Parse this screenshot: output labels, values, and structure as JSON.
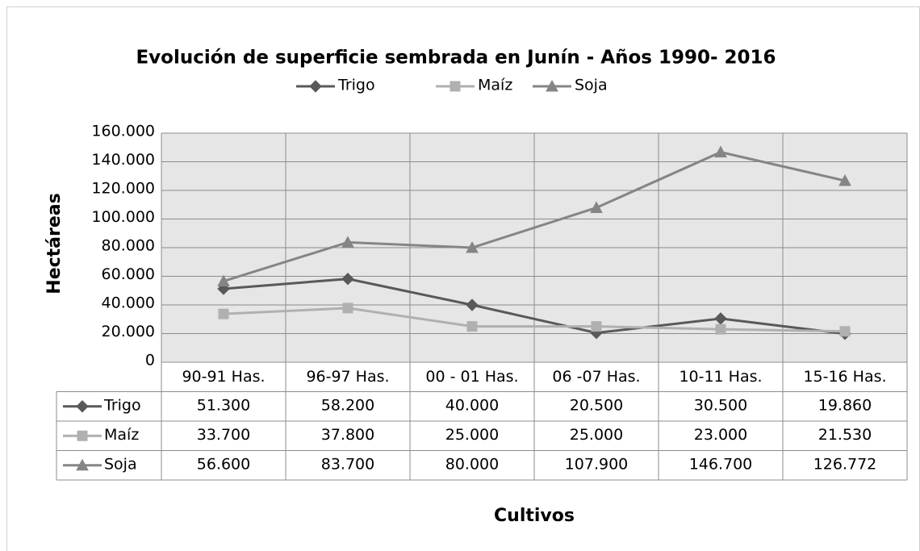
{
  "chart_data": {
    "type": "line",
    "title": "Evolución de superficie sembrada en Junín - Años 1990- 2016",
    "y_label": "Hectáreas",
    "x_label": "Cultivos",
    "categories": [
      "90-91 Has.",
      "96-97 Has.",
      "00 - 01 Has.",
      "06 -07 Has.",
      "10-11 Has.",
      "15-16 Has."
    ],
    "series": [
      {
        "name": "Trigo",
        "color": "#595959",
        "marker": "diamond",
        "values": [
          51300,
          58200,
          40000,
          20500,
          30500,
          19860
        ],
        "value_labels": [
          "51.300",
          "58.200",
          "40.000",
          "20.500",
          "30.500",
          "19.860"
        ]
      },
      {
        "name": "Maíz",
        "color": "#b0b0b0",
        "marker": "square",
        "values": [
          33700,
          37800,
          25000,
          25000,
          23000,
          21530
        ],
        "value_labels": [
          "33.700",
          "37.800",
          "25.000",
          "25.000",
          "23.000",
          "21.530"
        ]
      },
      {
        "name": "Soja",
        "color": "#858585",
        "marker": "triangle",
        "values": [
          56600,
          83700,
          80000,
          107900,
          146700,
          126772
        ],
        "value_labels": [
          "56.600",
          "83.700",
          "80.000",
          "107.900",
          "146.700",
          "126.772"
        ]
      }
    ],
    "ylim": [
      0,
      160000
    ],
    "yticks": [
      0,
      {
        "value": 20000,
        "label": "20.000"
      },
      {
        "value": 40000,
        "label": "40.000"
      },
      {
        "value": 60000,
        "label": "60.000"
      },
      {
        "value": 80000,
        "label": "80.000"
      },
      {
        "value": 100000,
        "label": "100.000"
      },
      {
        "value": 120000,
        "label": "120.000"
      },
      {
        "value": 140000,
        "label": "140.000"
      },
      {
        "value": 160000,
        "label": "160.000"
      }
    ],
    "grid": true,
    "legend": "top",
    "data_table": true
  }
}
